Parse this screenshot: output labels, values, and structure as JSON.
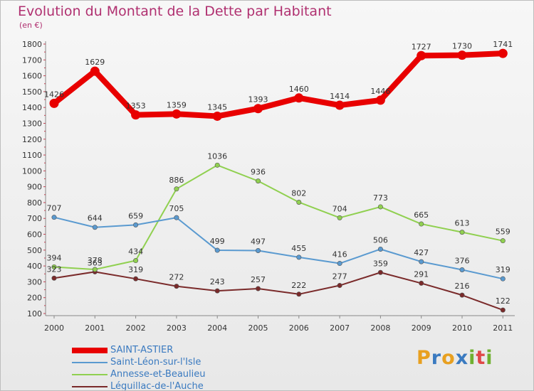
{
  "title": "Evolution du Montant de la Dette par Habitant",
  "unit_label": "(en €)",
  "brand": {
    "letters": [
      "P",
      "r",
      "o",
      "x",
      "i",
      "t",
      "i"
    ],
    "colors": [
      "#e8a020",
      "#3a7ac0",
      "#e8a020",
      "#3a7ac0",
      "#70b030",
      "#e04848",
      "#70b030"
    ]
  },
  "chart_data": {
    "type": "line",
    "title": "Evolution du Montant de la Dette par Habitant",
    "ylabel": "(en €)",
    "x": [
      "2000",
      "2001",
      "2002",
      "2003",
      "2004",
      "2005",
      "2006",
      "2007",
      "2008",
      "2009",
      "2010",
      "2011"
    ],
    "ylim": [
      100,
      1800
    ],
    "yticks": [
      100,
      200,
      300,
      400,
      500,
      600,
      700,
      800,
      900,
      1000,
      1100,
      1200,
      1300,
      1400,
      1500,
      1600,
      1700,
      1800
    ],
    "grid": false,
    "legend_position": "bottom-left",
    "series": [
      {
        "name": "SAINT-ASTIER",
        "color": "#e80000",
        "values": [
          1426,
          1629,
          1353,
          1359,
          1345,
          1393,
          1460,
          1414,
          1446,
          1727,
          1730,
          1741
        ]
      },
      {
        "name": "Saint-Léon-sur-l'Isle",
        "color": "#5a9ad0",
        "values": [
          707,
          644,
          659,
          705,
          499,
          497,
          455,
          416,
          506,
          427,
          376,
          319
        ]
      },
      {
        "name": "Annesse-et-Beaulieu",
        "color": "#90d050",
        "values": [
          394,
          378,
          434,
          886,
          1036,
          936,
          802,
          704,
          773,
          665,
          613,
          559
        ]
      },
      {
        "name": "Léguillac-de-l'Auche",
        "color": "#7a2a2a",
        "values": [
          323,
          363,
          319,
          272,
          243,
          257,
          222,
          277,
          359,
          291,
          216,
          122
        ]
      }
    ]
  }
}
